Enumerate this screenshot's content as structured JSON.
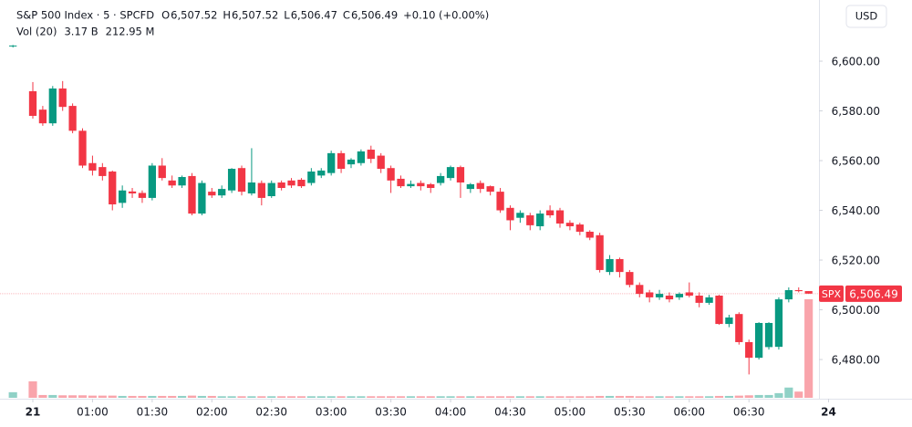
{
  "chart_data": {
    "type": "candlestick",
    "header": {
      "symbol": "S&P 500 Index · 5 · SPCFD",
      "o": "O",
      "open": "6,507.52",
      "h": "H",
      "high": "6,507.52",
      "l": "L",
      "low": "6,506.47",
      "c": "C",
      "close": "6,506.49",
      "change": "+0.10 (+0.00%)",
      "volume_title": "Vol (20)",
      "volume": "3.17 B",
      "volume_ma": "212.95 M"
    },
    "currency": "USD",
    "up_color": "#089981",
    "down_color": "#f23645",
    "x": [
      20,
      30,
      35,
      40,
      45,
      50,
      55,
      60,
      65,
      70,
      75,
      80,
      85,
      90,
      95,
      100,
      105,
      110,
      115,
      120,
      125,
      130,
      135,
      140,
      145,
      150,
      155,
      160,
      165,
      170,
      175,
      180,
      185,
      190,
      195,
      200,
      205,
      210,
      215,
      220,
      225,
      230,
      235,
      240,
      245,
      250,
      255,
      260,
      265,
      270,
      275,
      280,
      285,
      290,
      295,
      300,
      305,
      310,
      315,
      320,
      325,
      330,
      335,
      340,
      345,
      350,
      355,
      360,
      365,
      370,
      375,
      380,
      385,
      390,
      395,
      400,
      405,
      410,
      415,
      420
    ],
    "open": [
      6606,
      6587.9,
      6580.5,
      6575,
      6589,
      6582,
      6572,
      6559,
      6557.4,
      6555.6,
      6543,
      6547.6,
      6547,
      6545,
      6558,
      6552,
      6550,
      6553.8,
      6538.7,
      6547.5,
      6546,
      6548,
      6557,
      6546.8,
      6551,
      6545.7,
      6551.2,
      6552,
      6552.3,
      6551,
      6554,
      6555,
      6563,
      6558.5,
      6559,
      6564.4,
      6562,
      6557,
      6552.7,
      6549.7,
      6551,
      6550.5,
      6551,
      6553,
      6557.4,
      6548.6,
      6551,
      6549.7,
      6547.5,
      6541,
      6537,
      6538,
      6533.6,
      6540,
      6540,
      6535,
      6534.3,
      6531.4,
      6530,
      6515.2,
      6520.4,
      6515.2,
      6510,
      6507,
      6505,
      6505.7,
      6505,
      6507,
      6505.7,
      6502.8,
      6505.7,
      6494.3,
      6498.3,
      6487,
      6480.7,
      6485,
      6485.1,
      6504.2,
      6507.9,
      6507.52
    ],
    "high": [
      6606.5,
      6591.6,
      6582,
      6590,
      6592,
      6583,
      6573,
      6562,
      6559,
      6556,
      6550,
      6549,
      6548,
      6559,
      6561,
      6554,
      6554,
      6555,
      6552,
      6549,
      6550,
      6557,
      6558,
      6565,
      6552,
      6552,
      6552,
      6553,
      6553,
      6557,
      6557,
      6564,
      6564,
      6561,
      6564.5,
      6566,
      6563,
      6558,
      6554,
      6552,
      6552,
      6551,
      6555,
      6558,
      6558,
      6551,
      6552,
      6550,
      6549,
      6542,
      6540,
      6539,
      6540,
      6542,
      6541,
      6536,
      6535,
      6532,
      6531,
      6522,
      6521,
      6516,
      6511,
      6508,
      6508,
      6507,
      6507,
      6511,
      6507,
      6506,
      6506,
      6498,
      6499,
      6488,
      6495,
      6495,
      6505,
      6509,
      6509,
      6507.52
    ],
    "low": [
      6605.5,
      6576.9,
      6574,
      6574,
      6580,
      6571,
      6557,
      6554,
      6552,
      6540,
      6541,
      6545,
      6543,
      6544,
      6552,
      6549,
      6549,
      6538,
      6538,
      6545,
      6545,
      6547,
      6546,
      6546,
      6542,
      6545,
      6548,
      6549,
      6549,
      6550,
      6553,
      6554,
      6555,
      6557,
      6558,
      6559,
      6555,
      6547,
      6549,
      6549,
      6548,
      6547,
      6550,
      6552,
      6545,
      6547,
      6547,
      6546,
      6539,
      6532,
      6535,
      6532,
      6532,
      6537,
      6533,
      6532,
      6530,
      6528,
      6515,
      6514,
      6513,
      6509,
      6505,
      6503,
      6504,
      6503,
      6504,
      6505,
      6501,
      6502,
      6494,
      6493,
      6486,
      6474,
      6480,
      6484,
      6484,
      6503,
      6507,
      6506.47
    ],
    "close": [
      6606.3,
      6578,
      6575,
      6589,
      6581.6,
      6572,
      6558,
      6556,
      6553.8,
      6542.4,
      6548,
      6546.8,
      6545,
      6558,
      6553,
      6550,
      6553.4,
      6538.7,
      6551,
      6546,
      6548.6,
      6556.7,
      6547.5,
      6551.2,
      6545,
      6551,
      6549,
      6550,
      6549.7,
      6555.6,
      6556,
      6563,
      6556.7,
      6560.4,
      6563.7,
      6560.7,
      6556.7,
      6552,
      6549.7,
      6550.6,
      6549.7,
      6549,
      6553.8,
      6557.4,
      6551.2,
      6550.5,
      6548.6,
      6547.5,
      6540,
      6536,
      6539,
      6534,
      6538.7,
      6538,
      6534.7,
      6533.6,
      6531.4,
      6529,
      6516,
      6520.4,
      6515.2,
      6510,
      6506.4,
      6505,
      6506.4,
      6504.2,
      6506.4,
      6505.7,
      6502.8,
      6505,
      6494.3,
      6496.9,
      6487,
      6480.7,
      6494.7,
      6494.7,
      6504.2,
      6507.9,
      6507.5,
      6506.49
    ],
    "volume": [
      180000000,
      530000000,
      90000000,
      90000000,
      80000000,
      80000000,
      80000000,
      70000000,
      70000000,
      70000000,
      60000000,
      60000000,
      60000000,
      60000000,
      60000000,
      60000000,
      60000000,
      70000000,
      60000000,
      60000000,
      50000000,
      50000000,
      50000000,
      50000000,
      50000000,
      50000000,
      50000000,
      50000000,
      50000000,
      50000000,
      50000000,
      50000000,
      50000000,
      50000000,
      50000000,
      50000000,
      50000000,
      50000000,
      50000000,
      50000000,
      50000000,
      50000000,
      50000000,
      50000000,
      50000000,
      50000000,
      50000000,
      50000000,
      50000000,
      50000000,
      50000000,
      50000000,
      50000000,
      50000000,
      50000000,
      50000000,
      50000000,
      50000000,
      60000000,
      60000000,
      60000000,
      60000000,
      50000000,
      50000000,
      50000000,
      50000000,
      50000000,
      50000000,
      50000000,
      50000000,
      60000000,
      60000000,
      70000000,
      80000000,
      90000000,
      90000000,
      150000000,
      330000000,
      200000000,
      3170000000
    ],
    "last_price": {
      "name": "SPX",
      "value": 6506.49,
      "label": "6,506.49"
    },
    "xlim": [
      13.5,
      425.2
    ],
    "ylim": [
      6464.6,
      6624.6
    ],
    "yticks": [
      {
        "value": 6480,
        "label": "6,480.00"
      },
      {
        "value": 6500,
        "label": "6,500.00"
      },
      {
        "value": 6520,
        "label": "6,520.00"
      },
      {
        "value": 6540,
        "label": "6,540.00"
      },
      {
        "value": 6560,
        "label": "6,560.00"
      },
      {
        "value": 6580,
        "label": "6,580.00"
      },
      {
        "value": 6600,
        "label": "6,600.00"
      }
    ],
    "xticks": [
      {
        "value": 30,
        "label": "21"
      },
      {
        "value": 60,
        "label": "01:00"
      },
      {
        "value": 90,
        "label": "01:30"
      },
      {
        "value": 120,
        "label": "02:00"
      },
      {
        "value": 150,
        "label": "02:30"
      },
      {
        "value": 180,
        "label": "03:00"
      },
      {
        "value": 210,
        "label": "03:30"
      },
      {
        "value": 240,
        "label": "04:00"
      },
      {
        "value": 270,
        "label": "04:30"
      },
      {
        "value": 300,
        "label": "05:00"
      },
      {
        "value": 330,
        "label": "05:30"
      },
      {
        "value": 360,
        "label": "06:00"
      },
      {
        "value": 390,
        "label": "06:30"
      },
      {
        "value": 430,
        "label": "24"
      }
    ]
  }
}
